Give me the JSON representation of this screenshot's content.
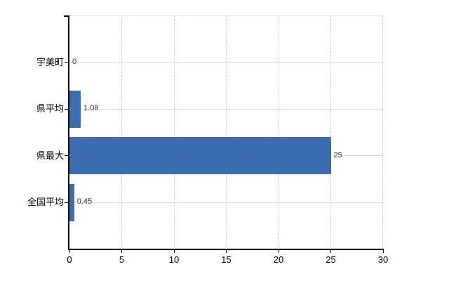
{
  "chart_data": {
    "type": "bar",
    "orientation": "horizontal",
    "title": "",
    "xlabel": "",
    "ylabel": "",
    "categories": [
      "宇美町",
      "県平均",
      "県最大",
      "全国平均"
    ],
    "values": [
      0,
      1.08,
      25,
      0.45
    ],
    "value_labels": [
      "0",
      "1.08",
      "25",
      "0.45"
    ],
    "x_ticks": [
      0,
      5,
      10,
      15,
      20,
      25,
      30
    ],
    "x_tick_labels": [
      "0",
      "5",
      "10",
      "15",
      "20",
      "25",
      "30"
    ],
    "xlim": [
      0,
      30
    ],
    "grid": true,
    "legend": false,
    "colors": {
      "bar": "#3c6db1",
      "grid_horizontal": "#d4ddd3",
      "grid_vertical": "#ccd5cb",
      "axis": "#000000",
      "category_text": "#000000",
      "tick_text": "#000000",
      "value_text": "#2b2b2b",
      "background": "#ffffff"
    }
  }
}
